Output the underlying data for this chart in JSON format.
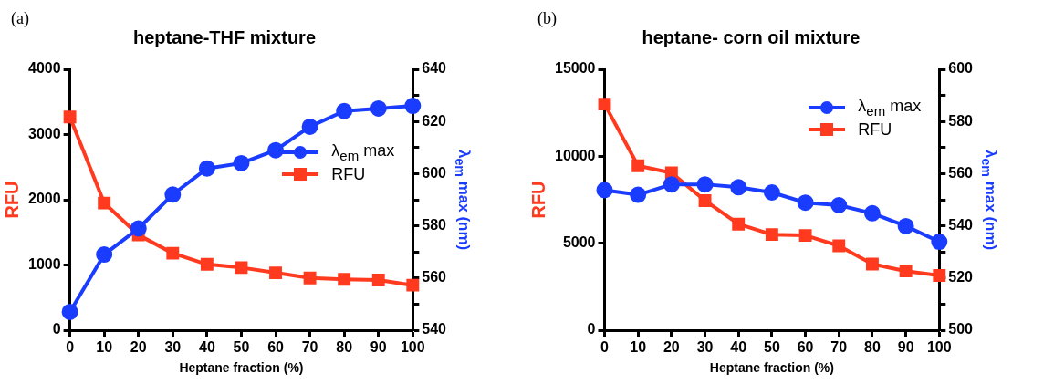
{
  "chart_data": [
    {
      "type": "line",
      "title": "heptane-THF mixture",
      "annotations": [
        "(a)"
      ],
      "xlabel": "Heptane fraction (%)",
      "ylabel": "RFU",
      "y2label": "λ$_{em}$ max (nm)",
      "x": [
        0,
        10,
        20,
        30,
        40,
        50,
        60,
        70,
        80,
        90,
        100
      ],
      "series": [
        {
          "name": "λ$_{em}$ max",
          "color": "#1a3cff",
          "axis": "y2",
          "marker": "circle",
          "values": [
            547,
            569,
            579,
            592,
            602,
            604,
            609,
            618,
            624,
            625,
            626
          ]
        },
        {
          "name": "RFU",
          "color": "#ff3a1f",
          "marker": "square",
          "values": [
            3270,
            1950,
            1460,
            1180,
            1010,
            960,
            880,
            800,
            780,
            770,
            690
          ]
        }
      ],
      "xlim": [
        0,
        100
      ],
      "xticks": [
        0,
        10,
        20,
        30,
        40,
        50,
        60,
        70,
        80,
        90,
        100
      ],
      "ylim": [
        0,
        4000
      ],
      "yticks": [
        0,
        1000,
        2000,
        3000,
        4000
      ],
      "y2lim": [
        540,
        640
      ],
      "y2ticks": [
        540,
        {
          "value": 550,
          "label": null
        },
        560,
        {
          "value": 570,
          "label": null
        },
        580,
        {
          "value": 590,
          "label": null
        },
        600,
        {
          "value": 610,
          "label": null
        },
        620,
        {
          "value": 630,
          "label": null
        },
        640
      ],
      "legend": "right",
      "line_style": "solid"
    },
    {
      "type": "line",
      "title": "heptane- corn oil mixture",
      "annotations": [
        "(b)"
      ],
      "xlabel": "Heptane fraction (%)",
      "ylabel": "RFU",
      "y2label": "λ$_{em}$ max (nm)",
      "x": [
        0,
        10,
        20,
        30,
        40,
        50,
        60,
        70,
        80,
        90,
        100
      ],
      "series": [
        {
          "name": "λ$_{em}$ max",
          "color": "#1a3cff",
          "axis": "y2",
          "marker": "circle",
          "values": [
            553.7,
            551.9,
            555.9,
            555.9,
            554.8,
            552.8,
            548.9,
            547.9,
            544.8,
            539.9,
            533.9
          ]
        },
        {
          "name": "RFU",
          "color": "#ff3a1f",
          "marker": "square",
          "values": [
            13000,
            9450,
            9050,
            7450,
            6100,
            5500,
            5450,
            4850,
            3800,
            3400,
            3150
          ]
        }
      ],
      "xlim": [
        0,
        100
      ],
      "xticks": [
        0,
        10,
        20,
        30,
        40,
        50,
        60,
        70,
        80,
        90,
        100
      ],
      "ylim": [
        0,
        15000
      ],
      "yticks": [
        0,
        5000,
        10000,
        15000
      ],
      "y2lim": [
        500,
        600
      ],
      "y2ticks": [
        500,
        {
          "value": 510,
          "label": null
        },
        520,
        {
          "value": 530,
          "label": null
        },
        540,
        {
          "value": 550,
          "label": null
        },
        560,
        {
          "value": 570,
          "label": null
        },
        580,
        {
          "value": 590,
          "label": null
        },
        600
      ],
      "legend": "top right",
      "line_style": "solid"
    }
  ]
}
